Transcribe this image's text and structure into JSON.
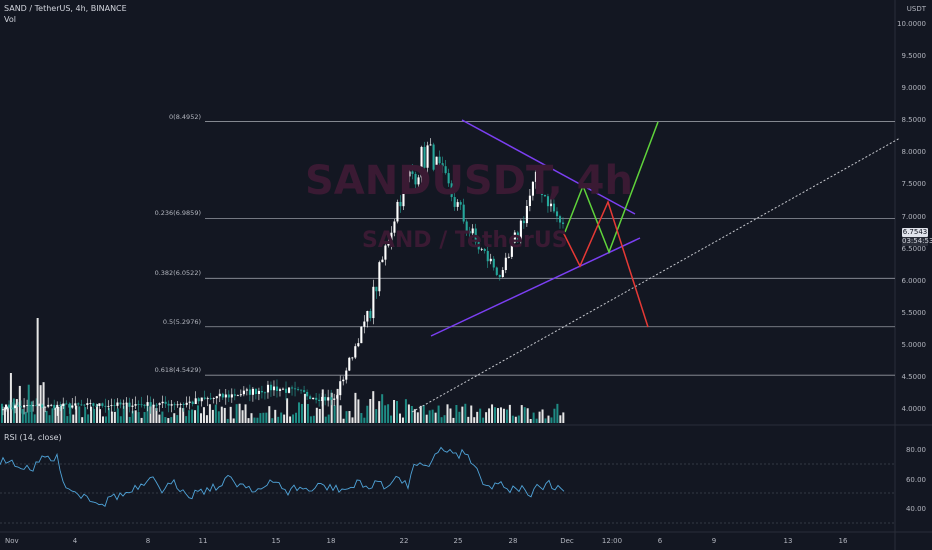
{
  "header": {
    "symbol_line": "SAND / TetherUS, 4h, BINANCE",
    "vol_label": "Vol",
    "watermark_big": "SANDUSDT, 4h",
    "watermark_small": "SAND / TetherUS"
  },
  "price_axis": {
    "currency": "USDT",
    "ticks": [
      "10.0000",
      "9.5000",
      "9.0000",
      "8.5000",
      "8.0000",
      "7.5000",
      "7.0000",
      "6.5000",
      "6.0000",
      "5.5000",
      "5.0000",
      "4.5000",
      "4.0000"
    ],
    "current_price": "6.7543",
    "countdown": "03:54:53"
  },
  "time_axis": {
    "ticks": [
      "Nov",
      "4",
      "8",
      "11",
      "15",
      "18",
      "22",
      "25",
      "28",
      "Dec",
      "12:00",
      "6",
      "9",
      "13",
      "16"
    ]
  },
  "fib_levels": [
    {
      "label": "0(8.4952)",
      "price": 8.4952
    },
    {
      "label": "0.236(6.9859)",
      "price": 6.9859
    },
    {
      "label": "0.382(6.0522)",
      "price": 6.0522
    },
    {
      "label": "0.5(5.2976)",
      "price": 5.2976
    },
    {
      "label": "0.618(4.5429)",
      "price": 4.5429
    }
  ],
  "rsi": {
    "label": "RSI (14, close)",
    "ticks": [
      "80.00",
      "60.00",
      "40.00"
    ]
  },
  "colors": {
    "background": "#131722",
    "up_candle": "#ffffff",
    "down_candle": "#26a69a",
    "triangle": "#7b3ff2",
    "bull_path": "#5fd33b",
    "bear_path": "#e53935",
    "rsi_line": "#4fa3d8"
  }
}
